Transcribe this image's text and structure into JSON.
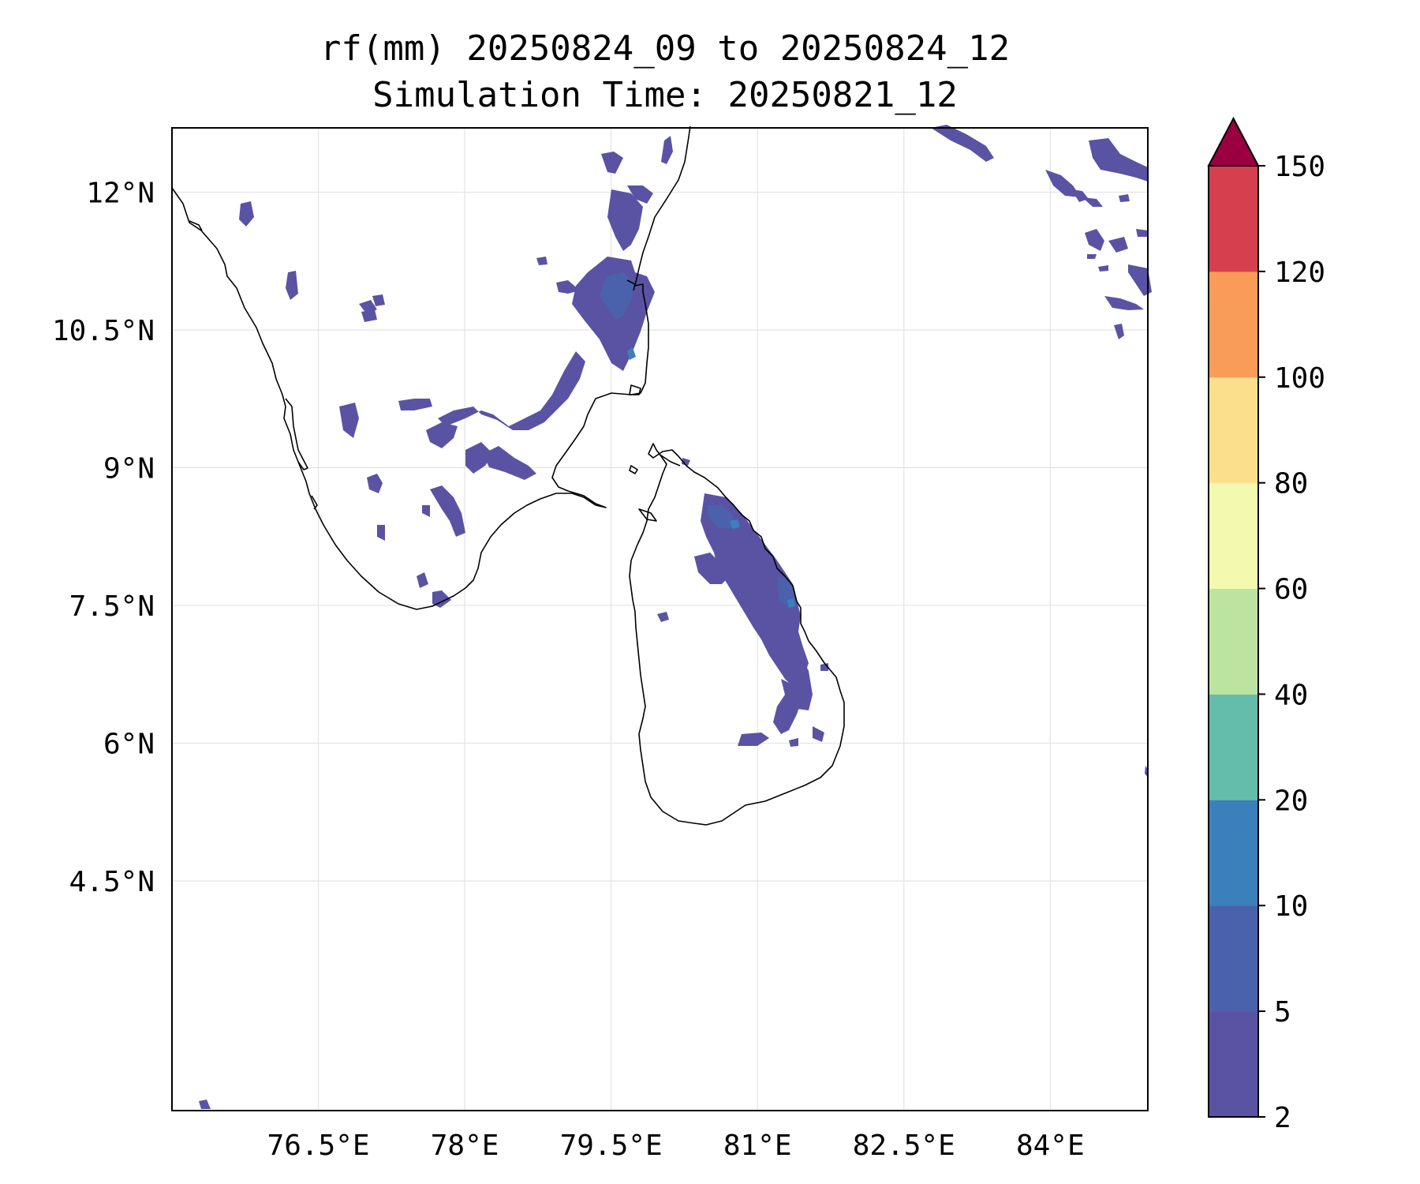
{
  "title_line1": "rf(mm) 20250824_09 to 20250824_12",
  "title_line2": "Simulation Time: 20250821_12",
  "map": {
    "lon_range": [
      75.0,
      85.0
    ],
    "lat_range": [
      2.0,
      12.7
    ],
    "x_ticks": [
      76.5,
      78.0,
      79.5,
      81.0,
      82.5,
      84.0
    ],
    "x_tick_labels": [
      "76.5°E",
      "78°E",
      "79.5°E",
      "81°E",
      "82.5°E",
      "84°E"
    ],
    "y_ticks": [
      12.0,
      10.5,
      9.0,
      7.5,
      6.0,
      4.5
    ],
    "y_tick_labels": [
      "12°N",
      "10.5°N",
      "9°N",
      "7.5°N",
      "6°N",
      "4.5°N"
    ],
    "grid": true,
    "land_color": "#ffffff",
    "coastline_color": "#000000"
  },
  "colorbar": {
    "levels": [
      2,
      5,
      10,
      20,
      40,
      60,
      80,
      100,
      120,
      150
    ],
    "labels": [
      "2",
      "5",
      "10",
      "20",
      "40",
      "60",
      "80",
      "100",
      "120",
      "150"
    ],
    "colors": [
      "#5a53a3",
      "#4a62ac",
      "#3b80bb",
      "#63bdaa",
      "#bde3a1",
      "#f3fab0",
      "#fcdf8d",
      "#f99c59",
      "#d63f4e"
    ],
    "extend_color": "#9a0040",
    "extend": "max"
  },
  "rain_colors": {
    "light": "#5a53a3",
    "medium": "#4a62ac",
    "heavy": "#3b80bb"
  }
}
